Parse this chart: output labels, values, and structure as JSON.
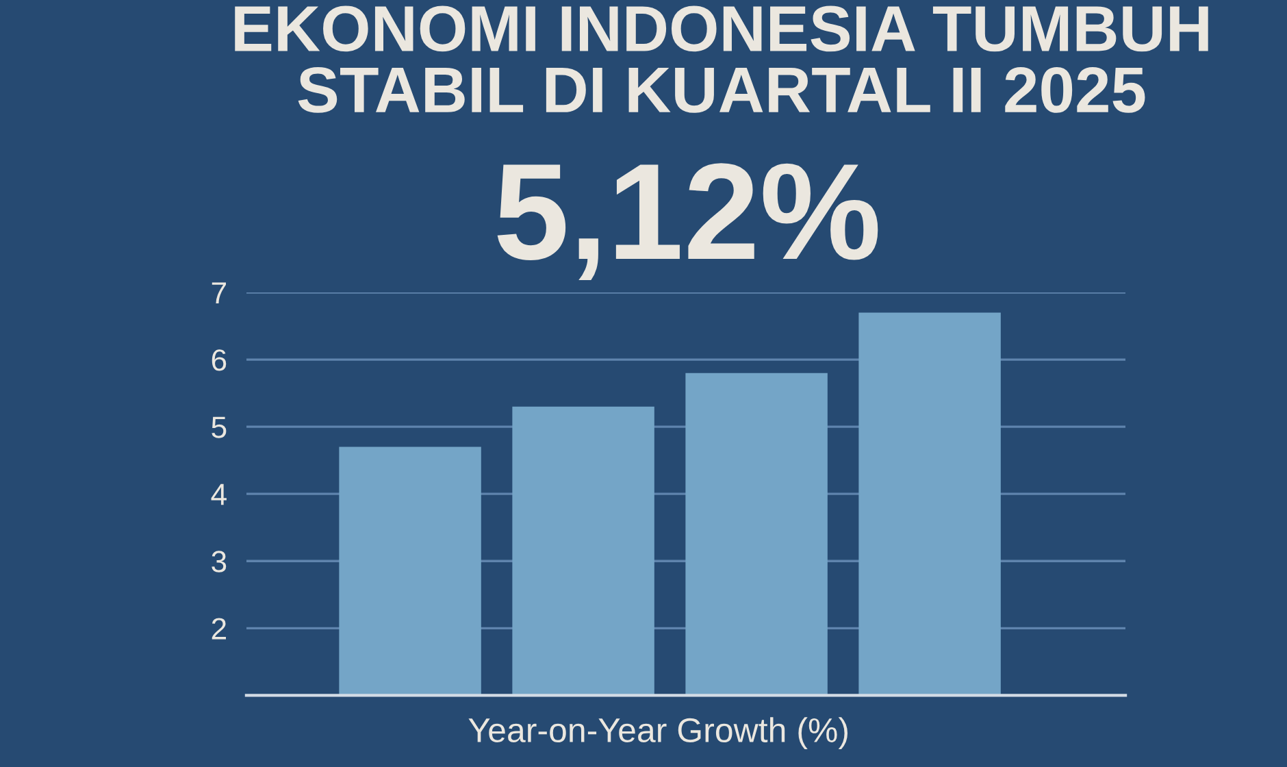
{
  "chart_data": {
    "type": "bar",
    "title": "EKONOMI INDONESIA TUMBUH\nSTABIL DI KUARTAL II 2025",
    "subtitle": "5,12%",
    "xlabel": "Year-on-Year Growth (%)",
    "categories": [
      null,
      null,
      null,
      null
    ],
    "values": [
      4.7,
      5.3,
      5.8,
      6.7
    ],
    "color": "#74a5c7",
    "ylim": [
      1,
      7
    ],
    "yticks": [
      2,
      3,
      4,
      5,
      6,
      7
    ],
    "grid": "y"
  }
}
